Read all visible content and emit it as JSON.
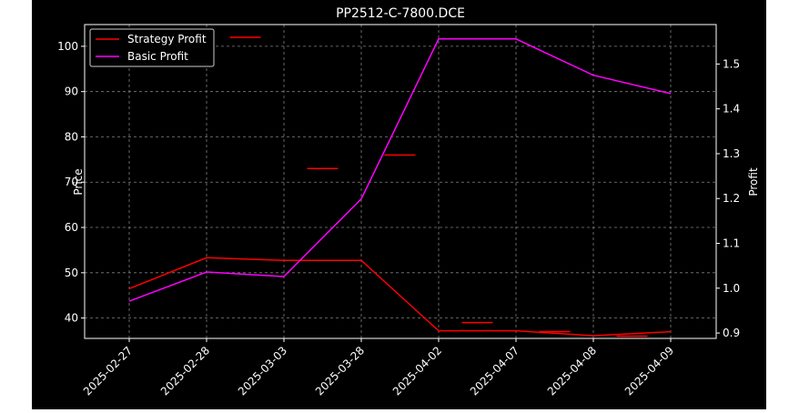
{
  "chart_data": {
    "type": "line",
    "title": "PP2512-C-7800.DCE",
    "xlabel": "",
    "ylabel": "Price",
    "y2label": "Profit",
    "categories": [
      "2025-02-27",
      "2025-02-28",
      "2025-03-03",
      "2025-03-28",
      "2025-04-02",
      "2025-04-07",
      "2025-04-08",
      "2025-04-09"
    ],
    "price_ticks": [
      40,
      50,
      60,
      70,
      80,
      90,
      100
    ],
    "profit_ticks": [
      0.9,
      1.0,
      1.1,
      1.2,
      1.3,
      1.4,
      1.5
    ],
    "ylim": [
      35.5,
      104.8
    ],
    "y2lim": [
      0.888,
      1.588
    ],
    "grid": true,
    "legend_position": "top-left",
    "background": "#000000",
    "series": [
      {
        "name": "Strategy Profit",
        "axis": "right",
        "color": "#ff0000",
        "values": [
          0.999,
          1.068,
          1.062,
          1.062,
          0.905,
          0.905,
          0.894,
          0.903
        ]
      },
      {
        "name": "Basic Profit",
        "axis": "right",
        "color": "#ff00ff",
        "values": [
          0.971,
          1.036,
          1.026,
          1.199,
          1.556,
          1.556,
          1.475,
          1.434
        ]
      }
    ],
    "price_marks": {
      "color": "#ff0000",
      "points": [
        {
          "x": 1,
          "y": 103
        },
        {
          "x": 2,
          "y": 102
        },
        {
          "x": 3,
          "y": 73
        },
        {
          "x": 4,
          "y": 76
        },
        {
          "x": 5,
          "y": 39
        },
        {
          "x": 6,
          "y": 37
        },
        {
          "x": 7,
          "y": 36
        }
      ]
    }
  }
}
